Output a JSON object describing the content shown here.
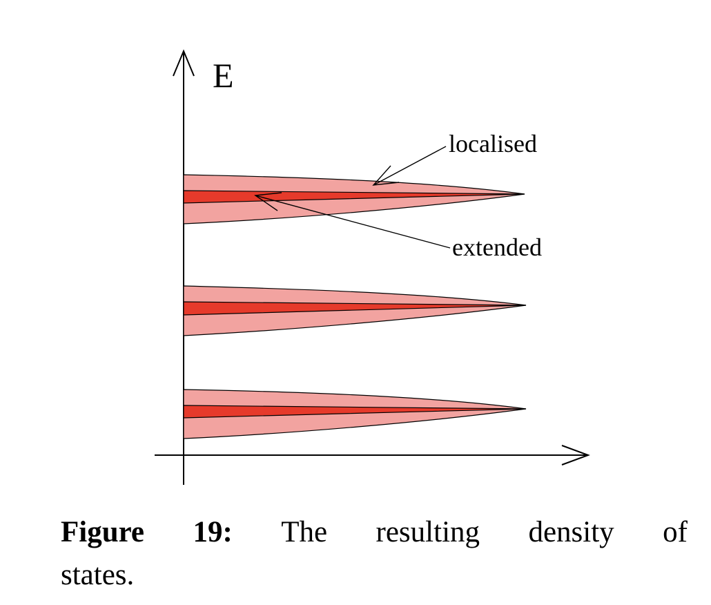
{
  "diagram": {
    "axis_label_e": "E",
    "label_localised": "localised",
    "label_extended": "extended",
    "band_count": 3,
    "colors": {
      "localised_fill": "#f2a3a0",
      "extended_fill": "#e63a2b",
      "outline": "#000000"
    }
  },
  "caption": {
    "figure_word": "Figure",
    "figure_number": "19:",
    "word_the": "The",
    "word_resulting": "resulting",
    "word_density": "density",
    "word_of": "of",
    "word_states": "states."
  }
}
